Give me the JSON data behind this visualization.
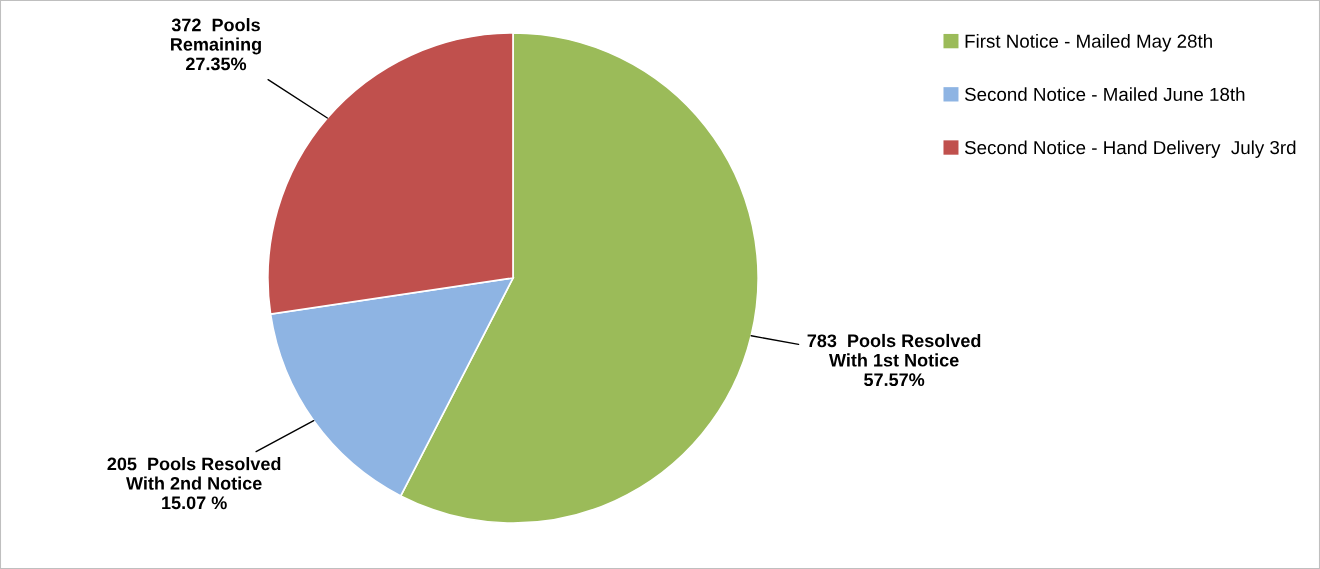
{
  "chart_data": {
    "type": "pie",
    "categories": [
      "First Notice - Mailed May 28th",
      "Second Notice - Mailed June 18th",
      "Second Notice - Hand Delivery  July 3rd"
    ],
    "values": [
      783,
      205,
      372
    ],
    "colors": [
      "#9bbb59",
      "#8eb4e3",
      "#c0504d"
    ],
    "value_labels": [
      "783  Pools Resolved\nWith 1st Notice\n57.57%",
      "205  Pools Resolved\nWith 2nd Notice\n15.07 %",
      "372  Pools\nRemaining\n27.35%"
    ],
    "legend": "top right"
  }
}
